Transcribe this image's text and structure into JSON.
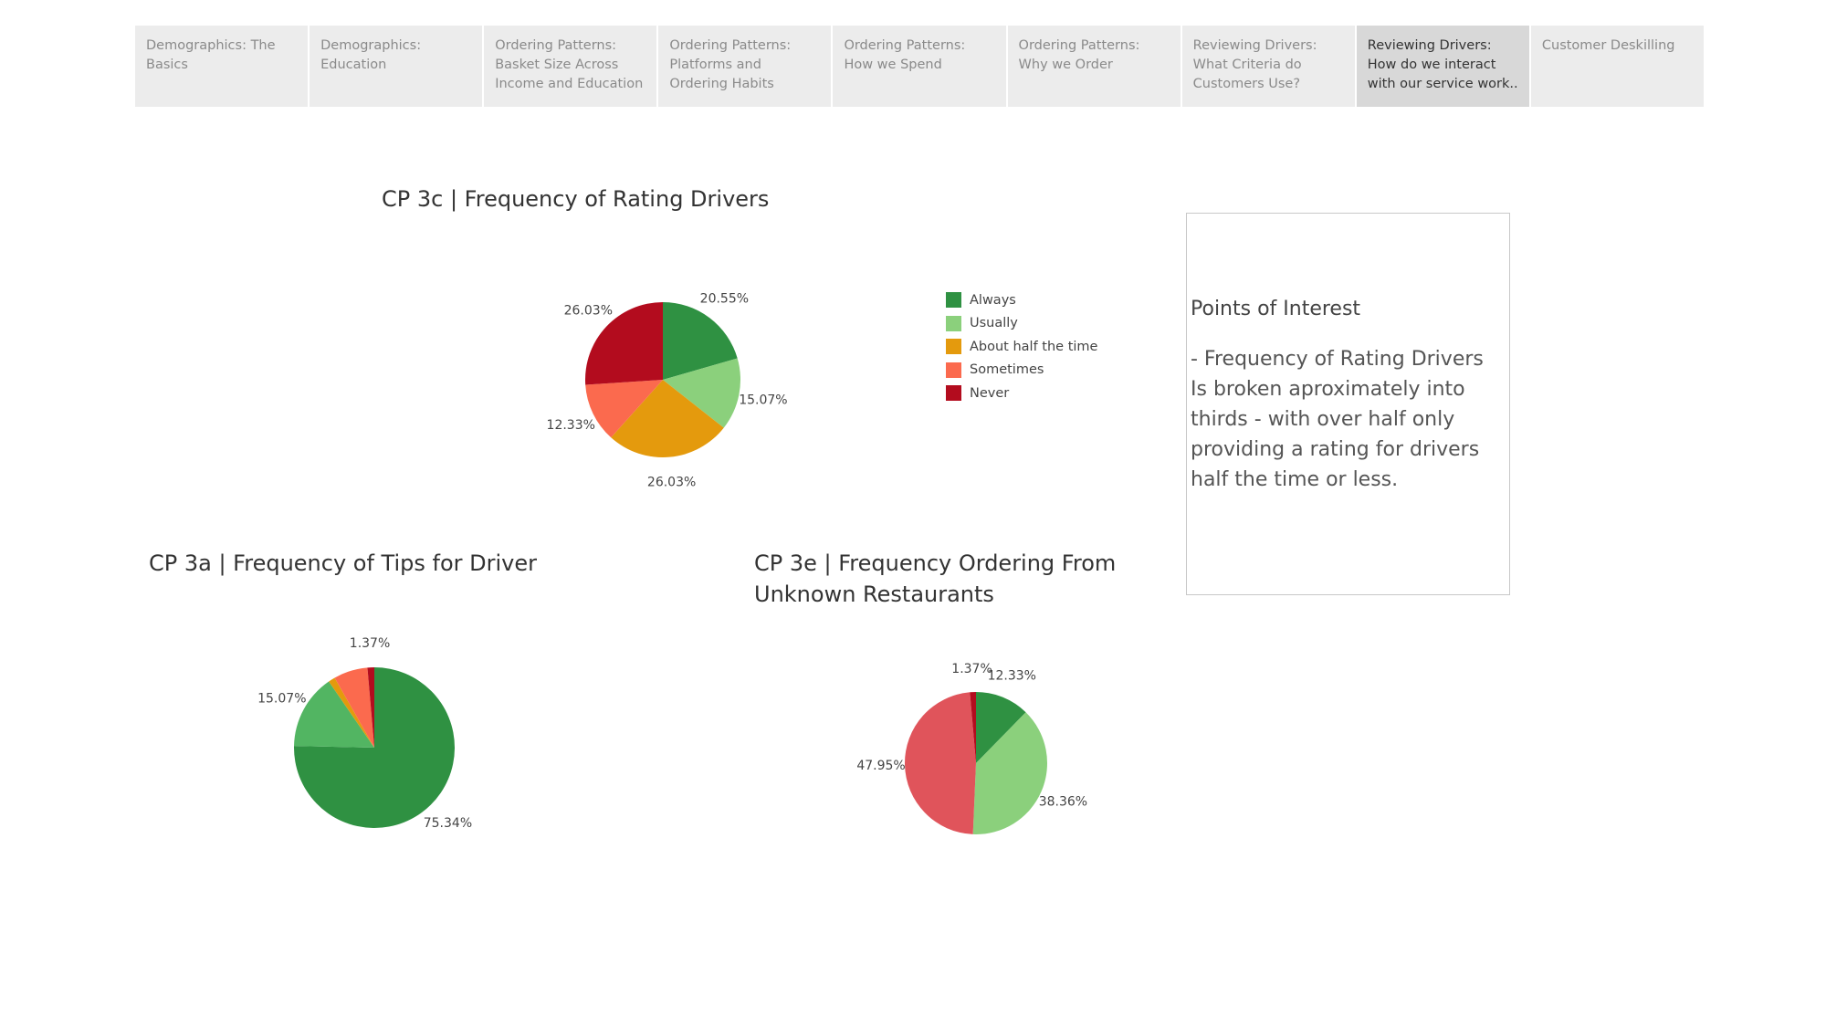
{
  "tabs": [
    {
      "label": "Demographics: The Basics",
      "active": false
    },
    {
      "label": "Demographics: Education",
      "active": false
    },
    {
      "label": "Ordering Patterns: Basket Size Across Income and Education",
      "active": false
    },
    {
      "label": "Ordering Patterns: Platforms and Ordering Habits",
      "active": false
    },
    {
      "label": "Ordering Patterns: How we Spend",
      "active": false
    },
    {
      "label": "Ordering Patterns: Why we Order",
      "active": false
    },
    {
      "label": "Reviewing Drivers: What Criteria do Customers Use?",
      "active": false
    },
    {
      "label": "Reviewing Drivers: How do we interact with our service work..",
      "active": true
    },
    {
      "label": "Customer Deskilling",
      "active": false
    }
  ],
  "legend": [
    {
      "label": "Always",
      "color": "#2f9142"
    },
    {
      "label": "Usually",
      "color": "#8bd07c"
    },
    {
      "label": "About half the time",
      "color": "#e49a0d"
    },
    {
      "label": "Sometimes",
      "color": "#fb6a4e"
    },
    {
      "label": "Never",
      "color": "#b30c1e"
    }
  ],
  "points_of_interest": {
    "heading": "Points of Interest",
    "lines": [
      "- Frequency of Rating Drivers",
      "Is broken aproximately into",
      "thirds - with over half only",
      "providing a rating for drivers",
      "half the time or less."
    ]
  },
  "chart_data": [
    {
      "type": "pie",
      "id": "cp3c",
      "title": "CP 3c | Frequency of Rating Drivers",
      "slices": [
        {
          "category": "Always",
          "value": 20.55,
          "label": "20.55%",
          "color": "#2f9142"
        },
        {
          "category": "Usually",
          "value": 15.07,
          "label": "15.07%",
          "color": "#8bd07c"
        },
        {
          "category": "About half the time",
          "value": 26.03,
          "label": "26.03%",
          "color": "#e49a0d"
        },
        {
          "category": "Sometimes",
          "value": 12.33,
          "label": "12.33%",
          "color": "#fb6a4e"
        },
        {
          "category": "Never",
          "value": 26.03,
          "label": "26.03%",
          "color": "#b30c1e"
        }
      ]
    },
    {
      "type": "pie",
      "id": "cp3a",
      "title": "CP 3a | Frequency of Tips for Driver",
      "slices": [
        {
          "category": "Always",
          "value": 75.34,
          "label": "75.34%",
          "color": "#2f9142"
        },
        {
          "category": "Usually",
          "value": 15.07,
          "label": "15.07%",
          "color": "#52b562"
        },
        {
          "category": "About half the time",
          "value": 1.37,
          "label": "",
          "color": "#e49a0d"
        },
        {
          "category": "Sometimes",
          "value": 6.85,
          "label": "",
          "color": "#fb6a4e"
        },
        {
          "category": "Never",
          "value": 1.37,
          "label": "1.37%",
          "color": "#b30c1e"
        }
      ]
    },
    {
      "type": "pie",
      "id": "cp3e",
      "title": "CP 3e | Frequency Ordering From Unknown Restaurants",
      "slices": [
        {
          "category": "Always",
          "value": 12.33,
          "label": "12.33%",
          "color": "#2f9142"
        },
        {
          "category": "Usually",
          "value": 38.36,
          "label": "38.36%",
          "color": "#8bd07c"
        },
        {
          "category": "Sometimes",
          "value": 47.95,
          "label": "47.95%",
          "color": "#e0545b"
        },
        {
          "category": "Never",
          "value": 1.37,
          "label": "1.37%",
          "color": "#b30c1e"
        }
      ]
    }
  ]
}
